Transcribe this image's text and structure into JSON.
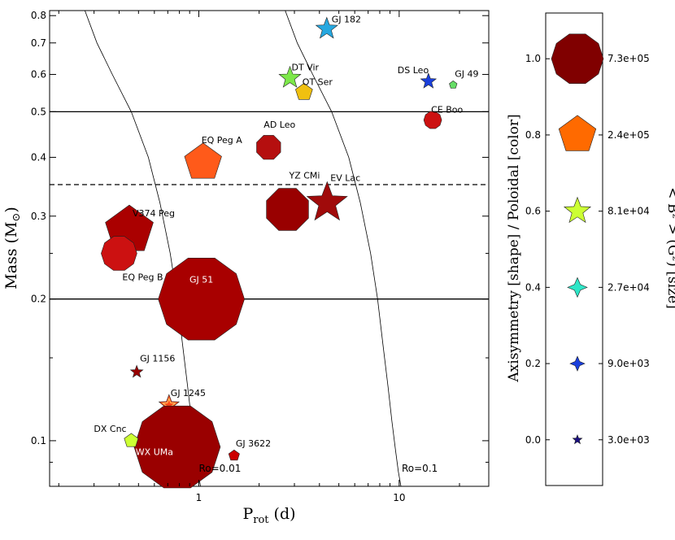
{
  "chart_data": {
    "type": "scatter",
    "title": "",
    "xlabel": "P",
    "xlabel_sub": "rot",
    "xlabel_unit": " (d)",
    "ylabel": "Mass (M",
    "ylabel_sym": "⊙",
    "ylabel_end": ")",
    "xscale": "log",
    "yscale": "log",
    "xlim": [
      0.18,
      28
    ],
    "ylim": [
      0.08,
      0.82
    ],
    "x_ticks": [
      {
        "v": 1,
        "label": "1"
      },
      {
        "v": 10,
        "label": "10"
      }
    ],
    "y_ticks": [
      {
        "v": 0.1,
        "label": "0.1"
      },
      {
        "v": 0.2,
        "label": "0.2"
      },
      {
        "v": 0.3,
        "label": "0.3"
      },
      {
        "v": 0.4,
        "label": "0.4"
      },
      {
        "v": 0.5,
        "label": "0.5"
      },
      {
        "v": 0.6,
        "label": "0.6"
      },
      {
        "v": 0.7,
        "label": "0.7"
      },
      {
        "v": 0.8,
        "label": "0.8"
      }
    ],
    "hlines": [
      {
        "y": 0.5,
        "style": "solid"
      },
      {
        "y": 0.35,
        "style": "dashed"
      },
      {
        "y": 0.2,
        "style": "solid"
      }
    ],
    "curves": [
      {
        "label": "Ro=0.01",
        "label_x": 1.0,
        "label_y": 0.086,
        "points": [
          [
            0.27,
            0.82
          ],
          [
            0.31,
            0.7
          ],
          [
            0.37,
            0.6
          ],
          [
            0.46,
            0.5
          ],
          [
            0.56,
            0.4
          ],
          [
            0.64,
            0.32
          ],
          [
            0.72,
            0.25
          ],
          [
            0.78,
            0.2
          ],
          [
            0.83,
            0.16
          ],
          [
            0.88,
            0.13
          ],
          [
            0.92,
            0.11
          ],
          [
            0.96,
            0.095
          ],
          [
            0.99,
            0.086
          ],
          [
            1.02,
            0.08
          ]
        ]
      },
      {
        "label": "Ro=0.1",
        "label_x": 10.3,
        "label_y": 0.086,
        "points": [
          [
            2.7,
            0.82
          ],
          [
            3.1,
            0.7
          ],
          [
            3.7,
            0.6
          ],
          [
            4.6,
            0.5
          ],
          [
            5.6,
            0.4
          ],
          [
            6.4,
            0.32
          ],
          [
            7.2,
            0.25
          ],
          [
            7.8,
            0.2
          ],
          [
            8.3,
            0.16
          ],
          [
            8.8,
            0.13
          ],
          [
            9.2,
            0.11
          ],
          [
            9.6,
            0.095
          ],
          [
            9.9,
            0.086
          ],
          [
            10.2,
            0.08
          ]
        ]
      }
    ],
    "colorbar": {
      "axis_label": "Axisymmetry [shape] / Poloidal [color]",
      "size_label": "< B² > (G²) [size]",
      "ticks": [
        {
          "v": 1.0,
          "label": "1.0",
          "b2": "7.3e+05",
          "color": "#800000",
          "shape": "polygon",
          "n": 10,
          "r": 32
        },
        {
          "v": 0.8,
          "label": "0.8",
          "b2": "2.4e+05",
          "color": "#ff6a00",
          "shape": "polygon",
          "n": 5,
          "r": 24
        },
        {
          "v": 0.6,
          "label": "0.6",
          "b2": "8.1e+04",
          "color": "#ccff33",
          "shape": "star",
          "n": 5,
          "r": 17
        },
        {
          "v": 0.4,
          "label": "0.4",
          "b2": "2.7e+04",
          "color": "#2ee6c7",
          "shape": "star",
          "n": 4,
          "r": 12
        },
        {
          "v": 0.2,
          "label": "0.2",
          "b2": "9.0e+03",
          "color": "#1a3fdc",
          "shape": "star",
          "n": 4,
          "r": 9
        },
        {
          "v": 0.0,
          "label": "0.0",
          "b2": "3.0e+03",
          "color": "#1a0f80",
          "shape": "star",
          "n": 5,
          "r": 6
        }
      ],
      "vlim": [
        -0.12,
        1.12
      ]
    },
    "stars": [
      {
        "name": "GJ 182",
        "p": 4.35,
        "m": 0.75,
        "color": "#26a8e0",
        "shape": "star",
        "n": 5,
        "r": 14,
        "label_dx": 6,
        "label_dy": -8
      },
      {
        "name": "DT Vir",
        "p": 2.85,
        "m": 0.59,
        "color": "#7de84a",
        "shape": "star",
        "n": 5,
        "r": 14,
        "label_dx": 2,
        "label_dy": -9
      },
      {
        "name": "OT Ser",
        "p": 3.35,
        "m": 0.55,
        "color": "#f0c010",
        "shape": "polygon",
        "n": 5,
        "r": 11,
        "label_dx": -2,
        "label_dy": -9
      },
      {
        "name": "DS Leo",
        "p": 14.0,
        "m": 0.58,
        "color": "#1a3fdc",
        "shape": "star",
        "n": 5,
        "r": 10,
        "label_dx": -38,
        "label_dy": -10
      },
      {
        "name": "GJ 49",
        "p": 18.6,
        "m": 0.57,
        "color": "#66dd66",
        "shape": "polygon",
        "n": 5,
        "r": 5,
        "label_dx": 2,
        "label_dy": -10
      },
      {
        "name": "CE Boo",
        "p": 14.7,
        "m": 0.48,
        "color": "#cc1111",
        "shape": "polygon",
        "n": 10,
        "r": 11,
        "label_dx": -2,
        "label_dy": -9
      },
      {
        "name": "EQ Peg A",
        "p": 1.05,
        "m": 0.39,
        "color": "#ff5a1a",
        "shape": "polygon",
        "n": 5,
        "r": 24,
        "label_dx": -2,
        "label_dy": -24
      },
      {
        "name": "AD Leo",
        "p": 2.23,
        "m": 0.42,
        "color": "#b50f0f",
        "shape": "polygon",
        "n": 8,
        "r": 16,
        "label_dx": -6,
        "label_dy": -24
      },
      {
        "name": "YZ CMi",
        "p": 2.77,
        "m": 0.31,
        "color": "#990000",
        "shape": "polygon",
        "n": 8,
        "r": 28,
        "label_dx": 2,
        "label_dy": -38
      },
      {
        "name": "EV Lac",
        "p": 4.37,
        "m": 0.32,
        "color": "#a00a0a",
        "shape": "star",
        "n": 5,
        "r": 26,
        "label_dx": 4,
        "label_dy": -27
      },
      {
        "name": "V374 Peg",
        "p": 0.45,
        "m": 0.28,
        "color": "#aa0000",
        "shape": "polygon",
        "n": 5,
        "r": 31,
        "label_dx": 4,
        "label_dy": -17
      },
      {
        "name": "EQ Peg B",
        "p": 0.4,
        "m": 0.25,
        "color": "#cc1111",
        "shape": "polygon",
        "n": 10,
        "r": 22,
        "label_dx": 4,
        "label_dy": 33
      },
      {
        "name": "GJ 51",
        "p": 1.03,
        "m": 0.2,
        "color": "#a80000",
        "shape": "polygon",
        "n": 10,
        "r": 53,
        "label_dx": 0,
        "label_dy": -20,
        "label_inside": true
      },
      {
        "name": "GJ 1156",
        "p": 0.49,
        "m": 0.14,
        "color": "#990000",
        "shape": "star",
        "n": 5,
        "r": 8,
        "label_dx": 4,
        "label_dy": -13
      },
      {
        "name": "GJ 1245",
        "p": 0.71,
        "m": 0.119,
        "color": "#ff4a1a",
        "shape": "star",
        "n": 5,
        "r": 13,
        "label_dx": 2,
        "label_dy": -11,
        "hollow_ring": true
      },
      {
        "name": "WX UMa",
        "p": 0.78,
        "m": 0.097,
        "color": "#9a0000",
        "shape": "polygon",
        "n": 10,
        "r": 53,
        "label_dx": -28,
        "label_dy": 10,
        "label_inside": true
      },
      {
        "name": "DX Cnc",
        "p": 0.46,
        "m": 0.1,
        "color": "#ccff33",
        "shape": "polygon",
        "n": 5,
        "r": 9,
        "label_dx": -46,
        "label_dy": -11
      },
      {
        "name": "GJ 3622",
        "p": 1.5,
        "m": 0.093,
        "color": "#cc0000",
        "shape": "polygon",
        "n": 5,
        "r": 7,
        "label_dx": 2,
        "label_dy": -11
      }
    ]
  }
}
